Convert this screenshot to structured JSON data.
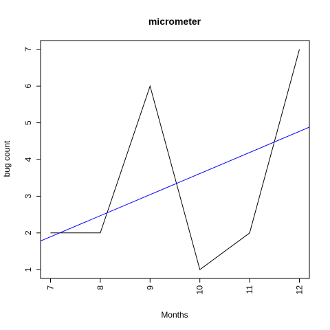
{
  "chart_data": {
    "type": "line",
    "title": "micrometer",
    "xlabel": "Months",
    "ylabel": "bug count",
    "xlim": [
      6.8,
      12.2
    ],
    "ylim": [
      0.76,
      7.24
    ],
    "x_ticks": [
      7,
      8,
      9,
      10,
      11,
      12
    ],
    "y_ticks": [
      1,
      2,
      3,
      4,
      5,
      6,
      7
    ],
    "grid": false,
    "series": [
      {
        "x": [
          7,
          8,
          9,
          10,
          11,
          12
        ],
        "values": [
          2,
          2,
          6,
          1,
          2,
          7
        ],
        "color": "#000000"
      }
    ],
    "trend_line": {
      "x": [
        6.8,
        12.2
      ],
      "values": [
        1.78,
        4.88
      ],
      "color": "#0000ff"
    }
  }
}
